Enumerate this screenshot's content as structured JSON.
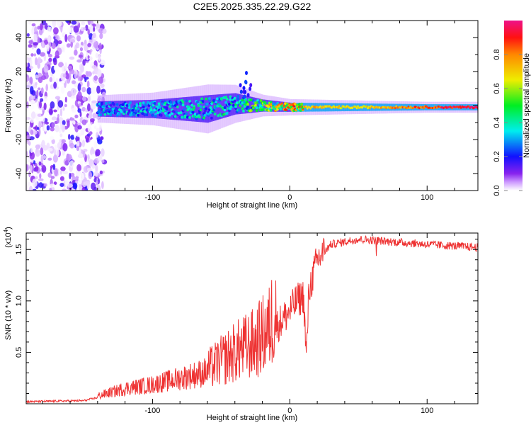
{
  "chart_data": [
    {
      "type": "heatmap",
      "title": "C2E5.2025.335.22.29.G22",
      "xlabel": "Height of straight line (km)",
      "ylabel": "Frequency (Hz)",
      "xlim": [
        -192,
        137
      ],
      "ylim": [
        -50,
        50
      ],
      "xticks": [
        -100,
        0,
        100
      ],
      "yticks": [
        -40,
        -20,
        0,
        20,
        40
      ],
      "colorbar": {
        "label": "Normalized spectral amplitude",
        "range": [
          0,
          1
        ],
        "ticks": [
          "0.0",
          "0.2",
          "0.4",
          "0.6",
          "0.8"
        ],
        "tick_values": [
          0,
          0.2,
          0.4,
          0.6,
          0.8
        ]
      },
      "noise_region_xmax": -140,
      "ridge": [
        {
          "x": -140,
          "freq": -2,
          "halfwidth": 5,
          "amp": 0.35
        },
        {
          "x": -100,
          "freq": -2,
          "halfwidth": 6,
          "amp": 0.35
        },
        {
          "x": -60,
          "freq": -2,
          "halfwidth": 9,
          "amp": 0.4
        },
        {
          "x": -40,
          "freq": 1,
          "halfwidth": 7,
          "amp": 0.4
        },
        {
          "x": -20,
          "freq": 0,
          "halfwidth": 4,
          "amp": 0.6
        },
        {
          "x": 0,
          "freq": -1,
          "halfwidth": 3,
          "amp": 0.8
        },
        {
          "x": 50,
          "freq": -1,
          "halfwidth": 2.5,
          "amp": 0.7
        },
        {
          "x": 100,
          "freq": -1,
          "halfwidth": 2,
          "amp": 0.9
        },
        {
          "x": 137,
          "freq": -1,
          "halfwidth": 2,
          "amp": 1.0
        }
      ]
    },
    {
      "type": "line",
      "xlabel": "Height of straight line (km)",
      "ylabel": "SNR (10 * v/v)",
      "yscale_label": "(x10",
      "yscale_exp": "4",
      "xlim": [
        -192,
        137
      ],
      "ylim": [
        0,
        1.66
      ],
      "xticks": [
        -100,
        0,
        100
      ],
      "yticks": [
        0.5,
        1.0,
        1.5
      ],
      "ytick_labels": [
        "0.5",
        "1.0",
        "1.5"
      ],
      "color": "#ee3333",
      "envelope": [
        [
          -192,
          0.02
        ],
        [
          -150,
          0.03
        ],
        [
          -140,
          0.06
        ],
        [
          -120,
          0.12
        ],
        [
          -100,
          0.15
        ],
        [
          -80,
          0.2
        ],
        [
          -60,
          0.25
        ],
        [
          -40,
          0.38
        ],
        [
          -25,
          0.45
        ],
        [
          -15,
          0.55
        ],
        [
          -10,
          0.75
        ],
        [
          0,
          0.9
        ],
        [
          5,
          1.0
        ],
        [
          10,
          1.05
        ],
        [
          12,
          0.45
        ],
        [
          14,
          1.1
        ],
        [
          20,
          1.4
        ],
        [
          30,
          1.55
        ],
        [
          50,
          1.6
        ],
        [
          80,
          1.57
        ],
        [
          100,
          1.55
        ],
        [
          137,
          1.52
        ]
      ]
    }
  ]
}
